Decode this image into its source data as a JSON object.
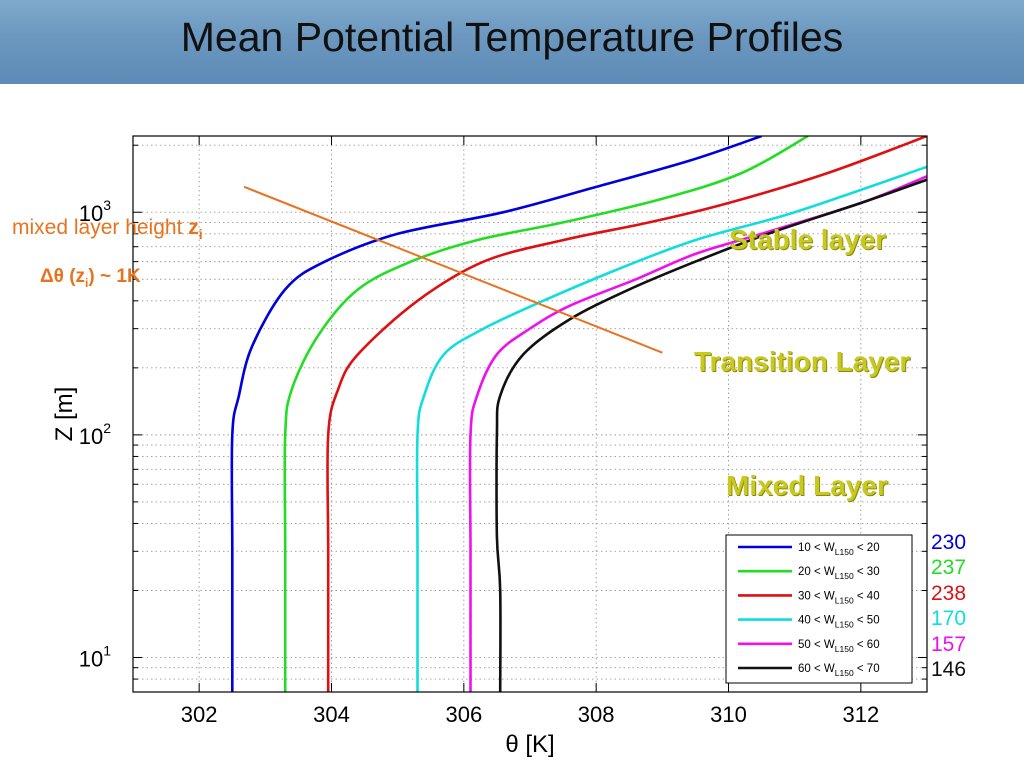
{
  "header": {
    "title": "Mean Potential Temperature Profiles"
  },
  "annotations": {
    "mixed_layer_height": "mixed layer height",
    "zi_symbol": "z",
    "zi_sub": "i",
    "delta_theta_prefix": "Δθ (z",
    "delta_theta_sub": "i",
    "delta_theta_suffix": ") ~ 1K",
    "stable": "Stable layer",
    "transition": "Transition Layer",
    "mixed": "Mixed Layer"
  },
  "legend_counts": [
    "230",
    "237",
    "238",
    "170",
    "157",
    "146"
  ],
  "chart_data": {
    "type": "line",
    "title": "",
    "xlabel": "θ [K]",
    "ylabel": "Z [m]",
    "xlim": [
      301,
      313
    ],
    "ylim": [
      7,
      2200
    ],
    "y_scale": "log",
    "grid": true,
    "legend_position": "bottom-right",
    "x_ticks": [
      302,
      304,
      306,
      308,
      310,
      312
    ],
    "y_ticks": [
      {
        "base": "10",
        "exp": "1",
        "value": 10
      },
      {
        "base": "10",
        "exp": "2",
        "value": 100
      },
      {
        "base": "10",
        "exp": "3",
        "value": 1000
      }
    ],
    "series": [
      {
        "name": "10 < W_L150 < 20",
        "legend_parts": [
          "10 < W",
          "L150",
          " < 20"
        ],
        "color": "#0000dd",
        "points": [
          [
            302.5,
            7
          ],
          [
            302.5,
            30
          ],
          [
            302.5,
            100
          ],
          [
            302.6,
            150
          ],
          [
            302.8,
            250
          ],
          [
            303.3,
            450
          ],
          [
            303.9,
            600
          ],
          [
            305.0,
            800
          ],
          [
            306.6,
            1000
          ],
          [
            308.0,
            1300
          ],
          [
            309.4,
            1700
          ],
          [
            310.5,
            2200
          ]
        ]
      },
      {
        "name": "20 < W_L150 < 30",
        "legend_parts": [
          "20 < W",
          "L150",
          " < 30"
        ],
        "color": "#22dd22",
        "points": [
          [
            303.3,
            7
          ],
          [
            303.3,
            30
          ],
          [
            303.3,
            100
          ],
          [
            303.4,
            160
          ],
          [
            303.8,
            280
          ],
          [
            304.4,
            450
          ],
          [
            305.2,
            600
          ],
          [
            306.2,
            750
          ],
          [
            307.5,
            900
          ],
          [
            309.0,
            1150
          ],
          [
            310.2,
            1500
          ],
          [
            311.2,
            2200
          ]
        ]
      },
      {
        "name": "30 < W_L150 < 40",
        "legend_parts": [
          "30 < W",
          "L150",
          " < 40"
        ],
        "color": "#dd1111",
        "points": [
          [
            303.95,
            7
          ],
          [
            303.95,
            30
          ],
          [
            303.95,
            100
          ],
          [
            304.1,
            160
          ],
          [
            304.4,
            230
          ],
          [
            305.3,
            400
          ],
          [
            306.3,
            600
          ],
          [
            307.5,
            750
          ],
          [
            308.8,
            900
          ],
          [
            310.0,
            1100
          ],
          [
            311.5,
            1500
          ],
          [
            313.0,
            2200
          ]
        ]
      },
      {
        "name": "40 < W_L150 < 50",
        "legend_parts": [
          "40 < W",
          "L150",
          " < 50"
        ],
        "color": "#11dddd",
        "points": [
          [
            305.3,
            7
          ],
          [
            305.3,
            30
          ],
          [
            305.3,
            100
          ],
          [
            305.4,
            150
          ],
          [
            305.7,
            230
          ],
          [
            306.3,
            300
          ],
          [
            307.2,
            400
          ],
          [
            308.3,
            550
          ],
          [
            309.5,
            750
          ],
          [
            311.0,
            1000
          ],
          [
            313.0,
            1600
          ]
        ]
      },
      {
        "name": "50 < W_L150 < 60",
        "legend_parts": [
          "50 < W",
          "L150",
          " < 60"
        ],
        "color": "#ee11ee",
        "points": [
          [
            306.1,
            7
          ],
          [
            306.1,
            30
          ],
          [
            306.1,
            100
          ],
          [
            306.2,
            150
          ],
          [
            306.5,
            230
          ],
          [
            307.0,
            300
          ],
          [
            307.6,
            380
          ],
          [
            308.6,
            500
          ],
          [
            309.5,
            650
          ],
          [
            310.5,
            800
          ],
          [
            312.0,
            1100
          ],
          [
            313.0,
            1450
          ]
        ]
      },
      {
        "name": "60 < W_L150 < 70",
        "legend_parts": [
          "60 < W",
          "L150",
          " < 70"
        ],
        "color": "#111111",
        "points": [
          [
            306.55,
            7
          ],
          [
            306.55,
            20
          ],
          [
            306.5,
            35
          ],
          [
            306.5,
            100
          ],
          [
            306.55,
            150
          ],
          [
            306.9,
            230
          ],
          [
            307.6,
            330
          ],
          [
            308.5,
            450
          ],
          [
            309.5,
            600
          ],
          [
            310.6,
            800
          ],
          [
            312.0,
            1100
          ],
          [
            313.0,
            1400
          ]
        ]
      }
    ],
    "annotation_line": {
      "color": "#e8731e",
      "points": [
        [
          302.8,
          800
        ],
        [
          309.0,
          300
        ]
      ]
    }
  }
}
